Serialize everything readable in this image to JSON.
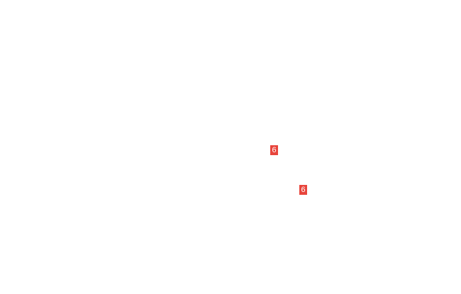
{
  "badges": [
    {
      "label": "6",
      "color": "#e8453c"
    },
    {
      "label": "6",
      "color": "#e8453c"
    }
  ]
}
